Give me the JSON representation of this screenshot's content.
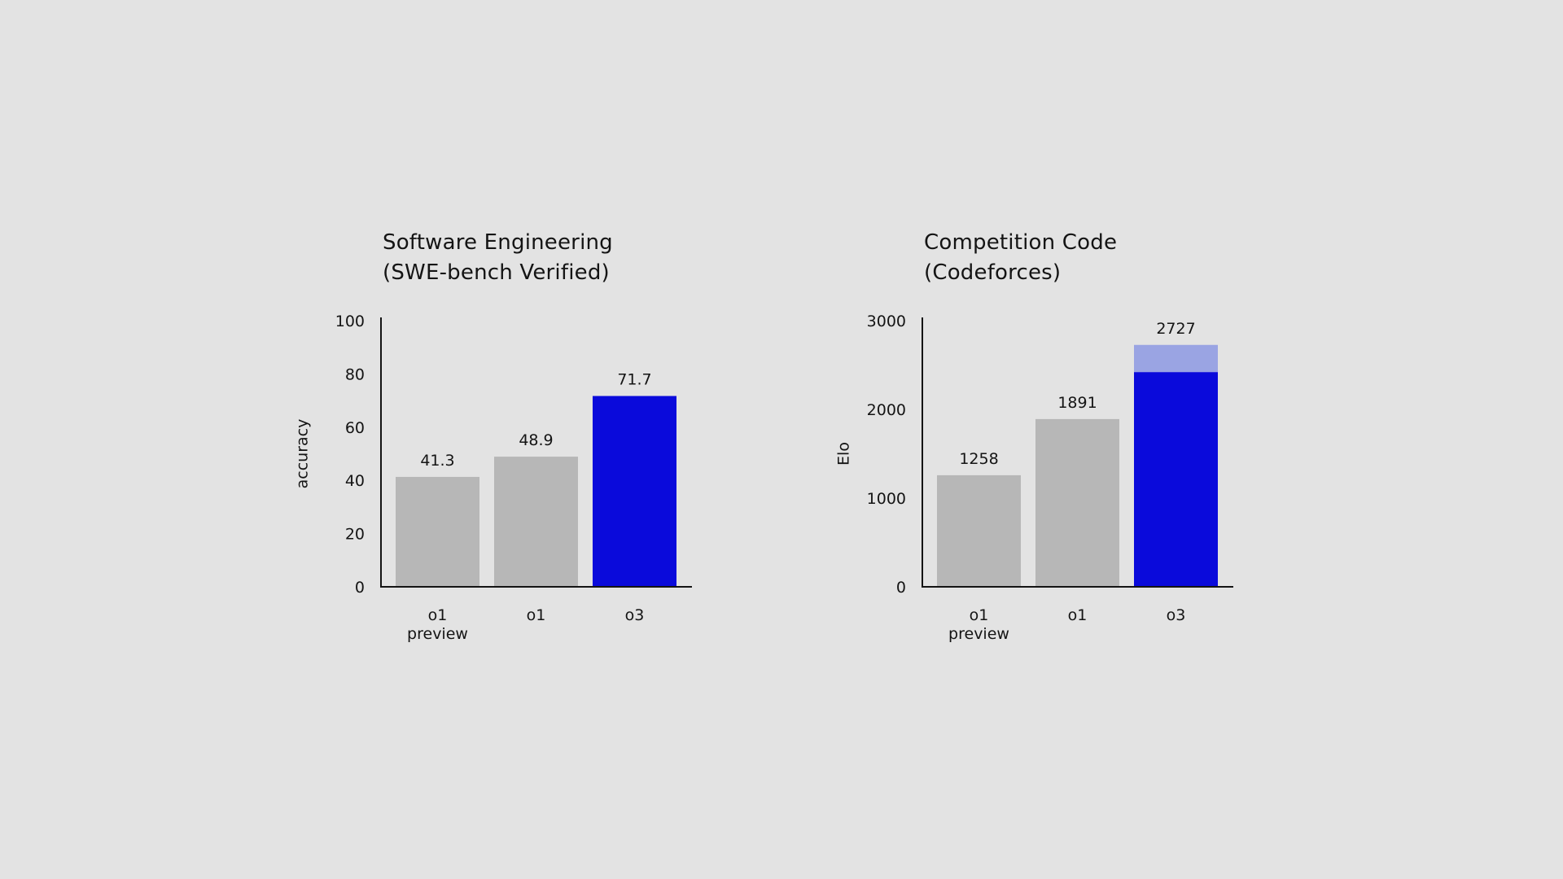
{
  "colors": {
    "background": "#e3e3e3",
    "gray_bar": "#b7b7b7",
    "highlight_bar": "#0a0adb",
    "highlight_extension": "#9aa4e3",
    "axis": "#141414",
    "text": "#141414"
  },
  "chart_data": [
    {
      "type": "bar",
      "title_lines": [
        "Software Engineering",
        "(SWE-bench Verified)"
      ],
      "ylabel": "accuracy",
      "xlabel": "",
      "ylim": [
        0,
        100
      ],
      "yticks": [
        "0",
        "20",
        "40",
        "60",
        "80",
        "100"
      ],
      "categories": [
        [
          "o1",
          "preview"
        ],
        [
          "o1"
        ],
        [
          "o3"
        ]
      ],
      "values": [
        41.3,
        48.9,
        71.7
      ],
      "value_labels": [
        "41.3",
        "48.9",
        "71.7"
      ],
      "highlight": [
        false,
        false,
        true
      ],
      "grid": false
    },
    {
      "type": "bar",
      "title_lines": [
        "Competition Code",
        "(Codeforces)"
      ],
      "ylabel": "Elo",
      "xlabel": "",
      "ylim": [
        0,
        3000
      ],
      "yticks": [
        "0",
        "1000",
        "2000",
        "3000"
      ],
      "categories": [
        [
          "o1",
          "preview"
        ],
        [
          "o1"
        ],
        [
          "o3"
        ]
      ],
      "values": [
        1258,
        1891,
        2727
      ],
      "solid_values": [
        1258,
        1891,
        2420
      ],
      "value_labels": [
        "1258",
        "1891",
        "2727"
      ],
      "highlight": [
        false,
        false,
        true
      ],
      "grid": false
    }
  ]
}
